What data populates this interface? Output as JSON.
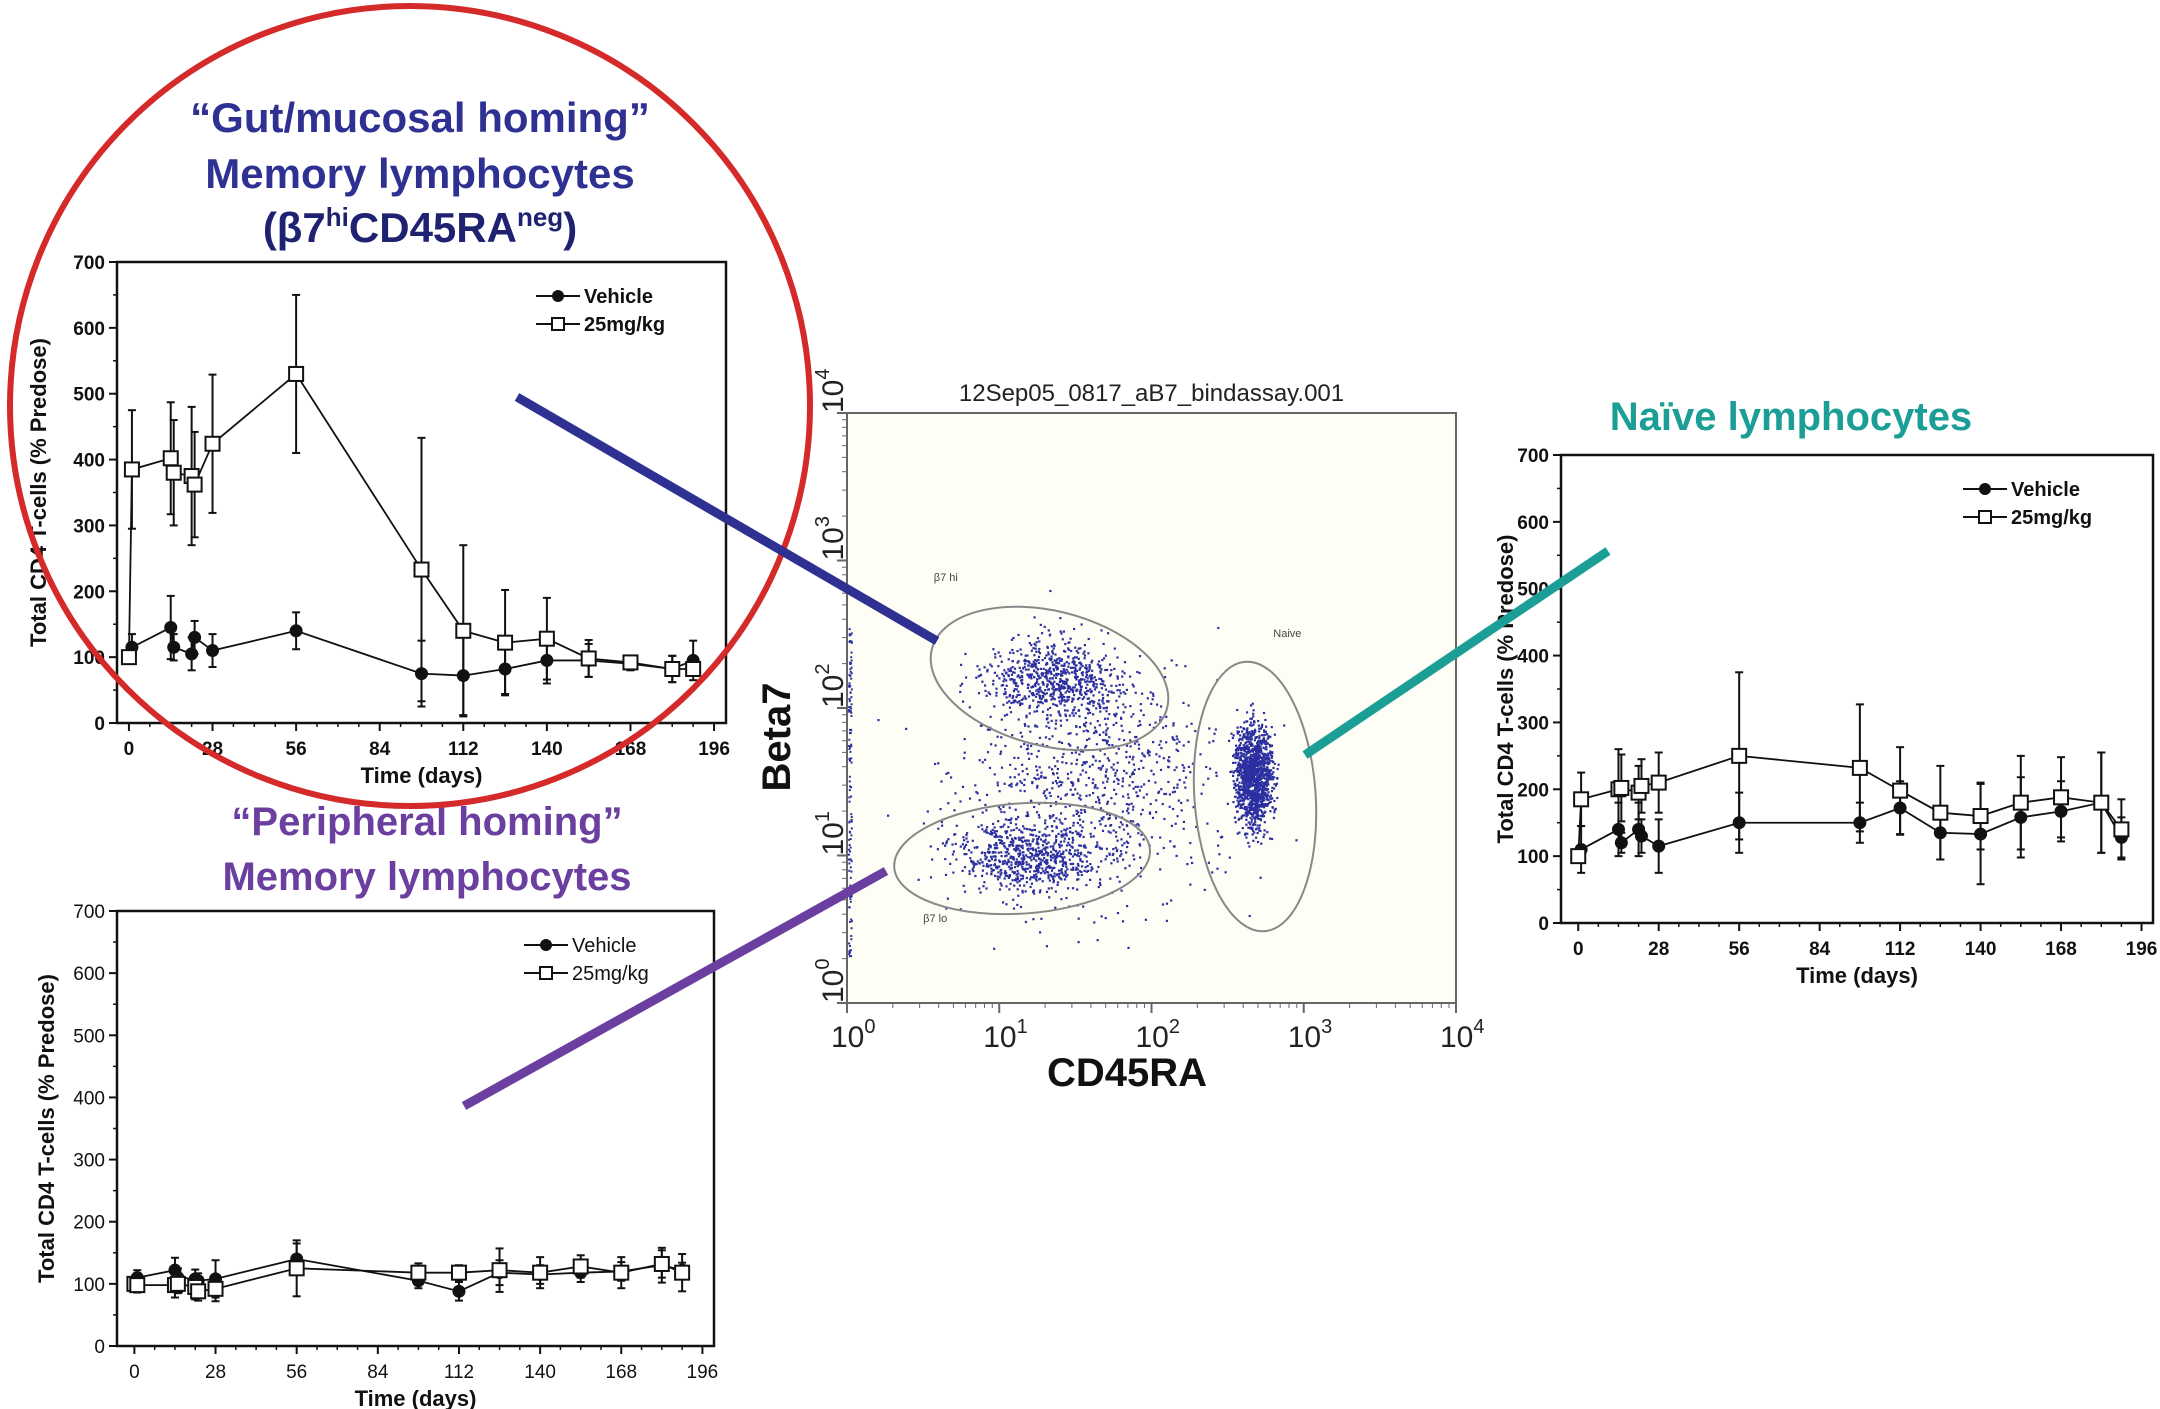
{
  "titles": {
    "gut": {
      "line1": "“Gut/mucosal homing”",
      "line2": "Memory lymphocytes",
      "line3_open": "(β7",
      "line3_sup1": "hi",
      "line3_mid": "CD45RA",
      "line3_sup2": "neg",
      "line3_close": ")",
      "color": "#2e3192"
    },
    "naive": {
      "line1": "Naïve lymphocytes",
      "color": "#1a9e96"
    },
    "peripheral": {
      "line1": "“Peripheral homing”",
      "line2": "Memory lymphocytes",
      "color": "#6a3fa0"
    }
  },
  "highlight_circle_color": "#d42a2a",
  "flow": {
    "title": "12Sep05_0817_aB7_bindassay.001",
    "xlabel": "CD45RA",
    "ylabel": "Beta7",
    "tick_base": "10",
    "tick_exponents": [
      "0",
      "1",
      "2",
      "3",
      "4"
    ],
    "scale": "log",
    "xlim": [
      1,
      10000
    ],
    "ylim": [
      1,
      10000
    ],
    "dot_color": "#2b2fa0",
    "gates": [
      {
        "name": "β7 hi",
        "label": "β7 hi"
      },
      {
        "name": "β7 lo",
        "label": "β7 lo"
      },
      {
        "name": "Naive",
        "label": "Naive"
      }
    ]
  },
  "chart_data": [
    {
      "id": "gut",
      "type": "line",
      "xlabel": "Time (days)",
      "ylabel": "Total CD4 T-cells (% Predose)",
      "xlim": [
        -4,
        200
      ],
      "ylim": [
        0,
        700
      ],
      "xticks": [
        0,
        28,
        56,
        84,
        112,
        140,
        168,
        196
      ],
      "yticks": [
        0,
        100,
        200,
        300,
        400,
        500,
        600,
        700
      ],
      "legend": "top-right",
      "series": [
        {
          "name": "Vehicle",
          "marker": "filled-circle",
          "x": [
            1,
            14,
            15,
            21,
            22,
            28,
            56,
            98,
            112,
            126,
            140,
            154,
            168,
            182,
            189
          ],
          "y": [
            115,
            145,
            115,
            105,
            130,
            110,
            140,
            75,
            72,
            82,
            95,
            95,
            90,
            82,
            95
          ],
          "err": [
            20,
            48,
            20,
            25,
            25,
            25,
            28,
            50,
            60,
            38,
            35,
            25,
            10,
            20,
            30
          ]
        },
        {
          "name": "25mg/kg",
          "marker": "open-square",
          "x": [
            0,
            1,
            14,
            15,
            21,
            22,
            28,
            56,
            98,
            112,
            126,
            140,
            154,
            168,
            182,
            189
          ],
          "y": [
            100,
            385,
            402,
            380,
            375,
            362,
            424,
            530,
            233,
            140,
            122,
            128,
            98,
            92,
            82,
            82
          ],
          "err": [
            0,
            90,
            85,
            80,
            105,
            80,
            105,
            120,
            200,
            130,
            80,
            62,
            28,
            10,
            20,
            10
          ]
        }
      ]
    },
    {
      "id": "naive",
      "type": "line",
      "xlabel": "Time (days)",
      "ylabel": "Total CD4 T-cells (% Predose)",
      "xlim": [
        -6,
        200
      ],
      "ylim": [
        0,
        700
      ],
      "xticks": [
        0,
        28,
        56,
        84,
        112,
        140,
        168,
        196
      ],
      "yticks": [
        0,
        100,
        200,
        300,
        400,
        500,
        600,
        700
      ],
      "legend": "top-right",
      "series": [
        {
          "name": "Vehicle",
          "marker": "filled-circle",
          "x": [
            1,
            14,
            15,
            21,
            22,
            28,
            56,
            98,
            112,
            126,
            140,
            154,
            168,
            182,
            189
          ],
          "y": [
            110,
            140,
            120,
            140,
            130,
            115,
            150,
            150,
            172,
            135,
            133,
            158,
            167,
            180,
            128
          ],
          "err": [
            35,
            40,
            15,
            40,
            25,
            40,
            45,
            30,
            40,
            40,
            75,
            60,
            45,
            75,
            30
          ]
        },
        {
          "name": "25mg/kg",
          "marker": "open-square",
          "x": [
            0,
            1,
            14,
            15,
            21,
            22,
            28,
            56,
            98,
            112,
            126,
            140,
            154,
            168,
            182,
            189
          ],
          "y": [
            100,
            185,
            200,
            202,
            195,
            205,
            210,
            250,
            232,
            198,
            165,
            160,
            180,
            188,
            180,
            140
          ],
          "err": [
            0,
            40,
            60,
            50,
            40,
            40,
            45,
            125,
            95,
            65,
            70,
            50,
            70,
            60,
            75,
            45
          ]
        }
      ]
    },
    {
      "id": "peripheral",
      "type": "line",
      "xlabel": "Time (days)",
      "ylabel": "Total CD4 T-cells (% Predose)",
      "xlim": [
        -6,
        200
      ],
      "ylim": [
        0,
        700
      ],
      "xticks": [
        0,
        28,
        56,
        84,
        112,
        140,
        168,
        196
      ],
      "yticks": [
        0,
        100,
        200,
        300,
        400,
        500,
        600,
        700
      ],
      "legend": "top-right",
      "series": [
        {
          "name": "Vehicle",
          "marker": "filled-circle",
          "x": [
            1,
            14,
            15,
            21,
            22,
            28,
            56,
            98,
            112,
            126,
            140,
            154,
            168,
            182,
            189
          ],
          "y": [
            110,
            122,
            110,
            108,
            105,
            108,
            140,
            105,
            88,
            118,
            115,
            118,
            120,
            130,
            122
          ],
          "err": [
            12,
            20,
            15,
            15,
            12,
            30,
            25,
            12,
            15,
            20,
            15,
            15,
            15,
            28,
            12
          ]
        },
        {
          "name": "25mg/kg",
          "marker": "open-square",
          "x": [
            0,
            1,
            14,
            15,
            21,
            22,
            28,
            56,
            98,
            112,
            126,
            140,
            154,
            168,
            182,
            189
          ],
          "y": [
            100,
            98,
            98,
            100,
            95,
            88,
            92,
            125,
            118,
            118,
            122,
            118,
            128,
            118,
            132,
            118
          ],
          "err": [
            0,
            12,
            20,
            15,
            20,
            15,
            20,
            45,
            15,
            12,
            35,
            25,
            18,
            25,
            22,
            30
          ]
        }
      ]
    }
  ]
}
